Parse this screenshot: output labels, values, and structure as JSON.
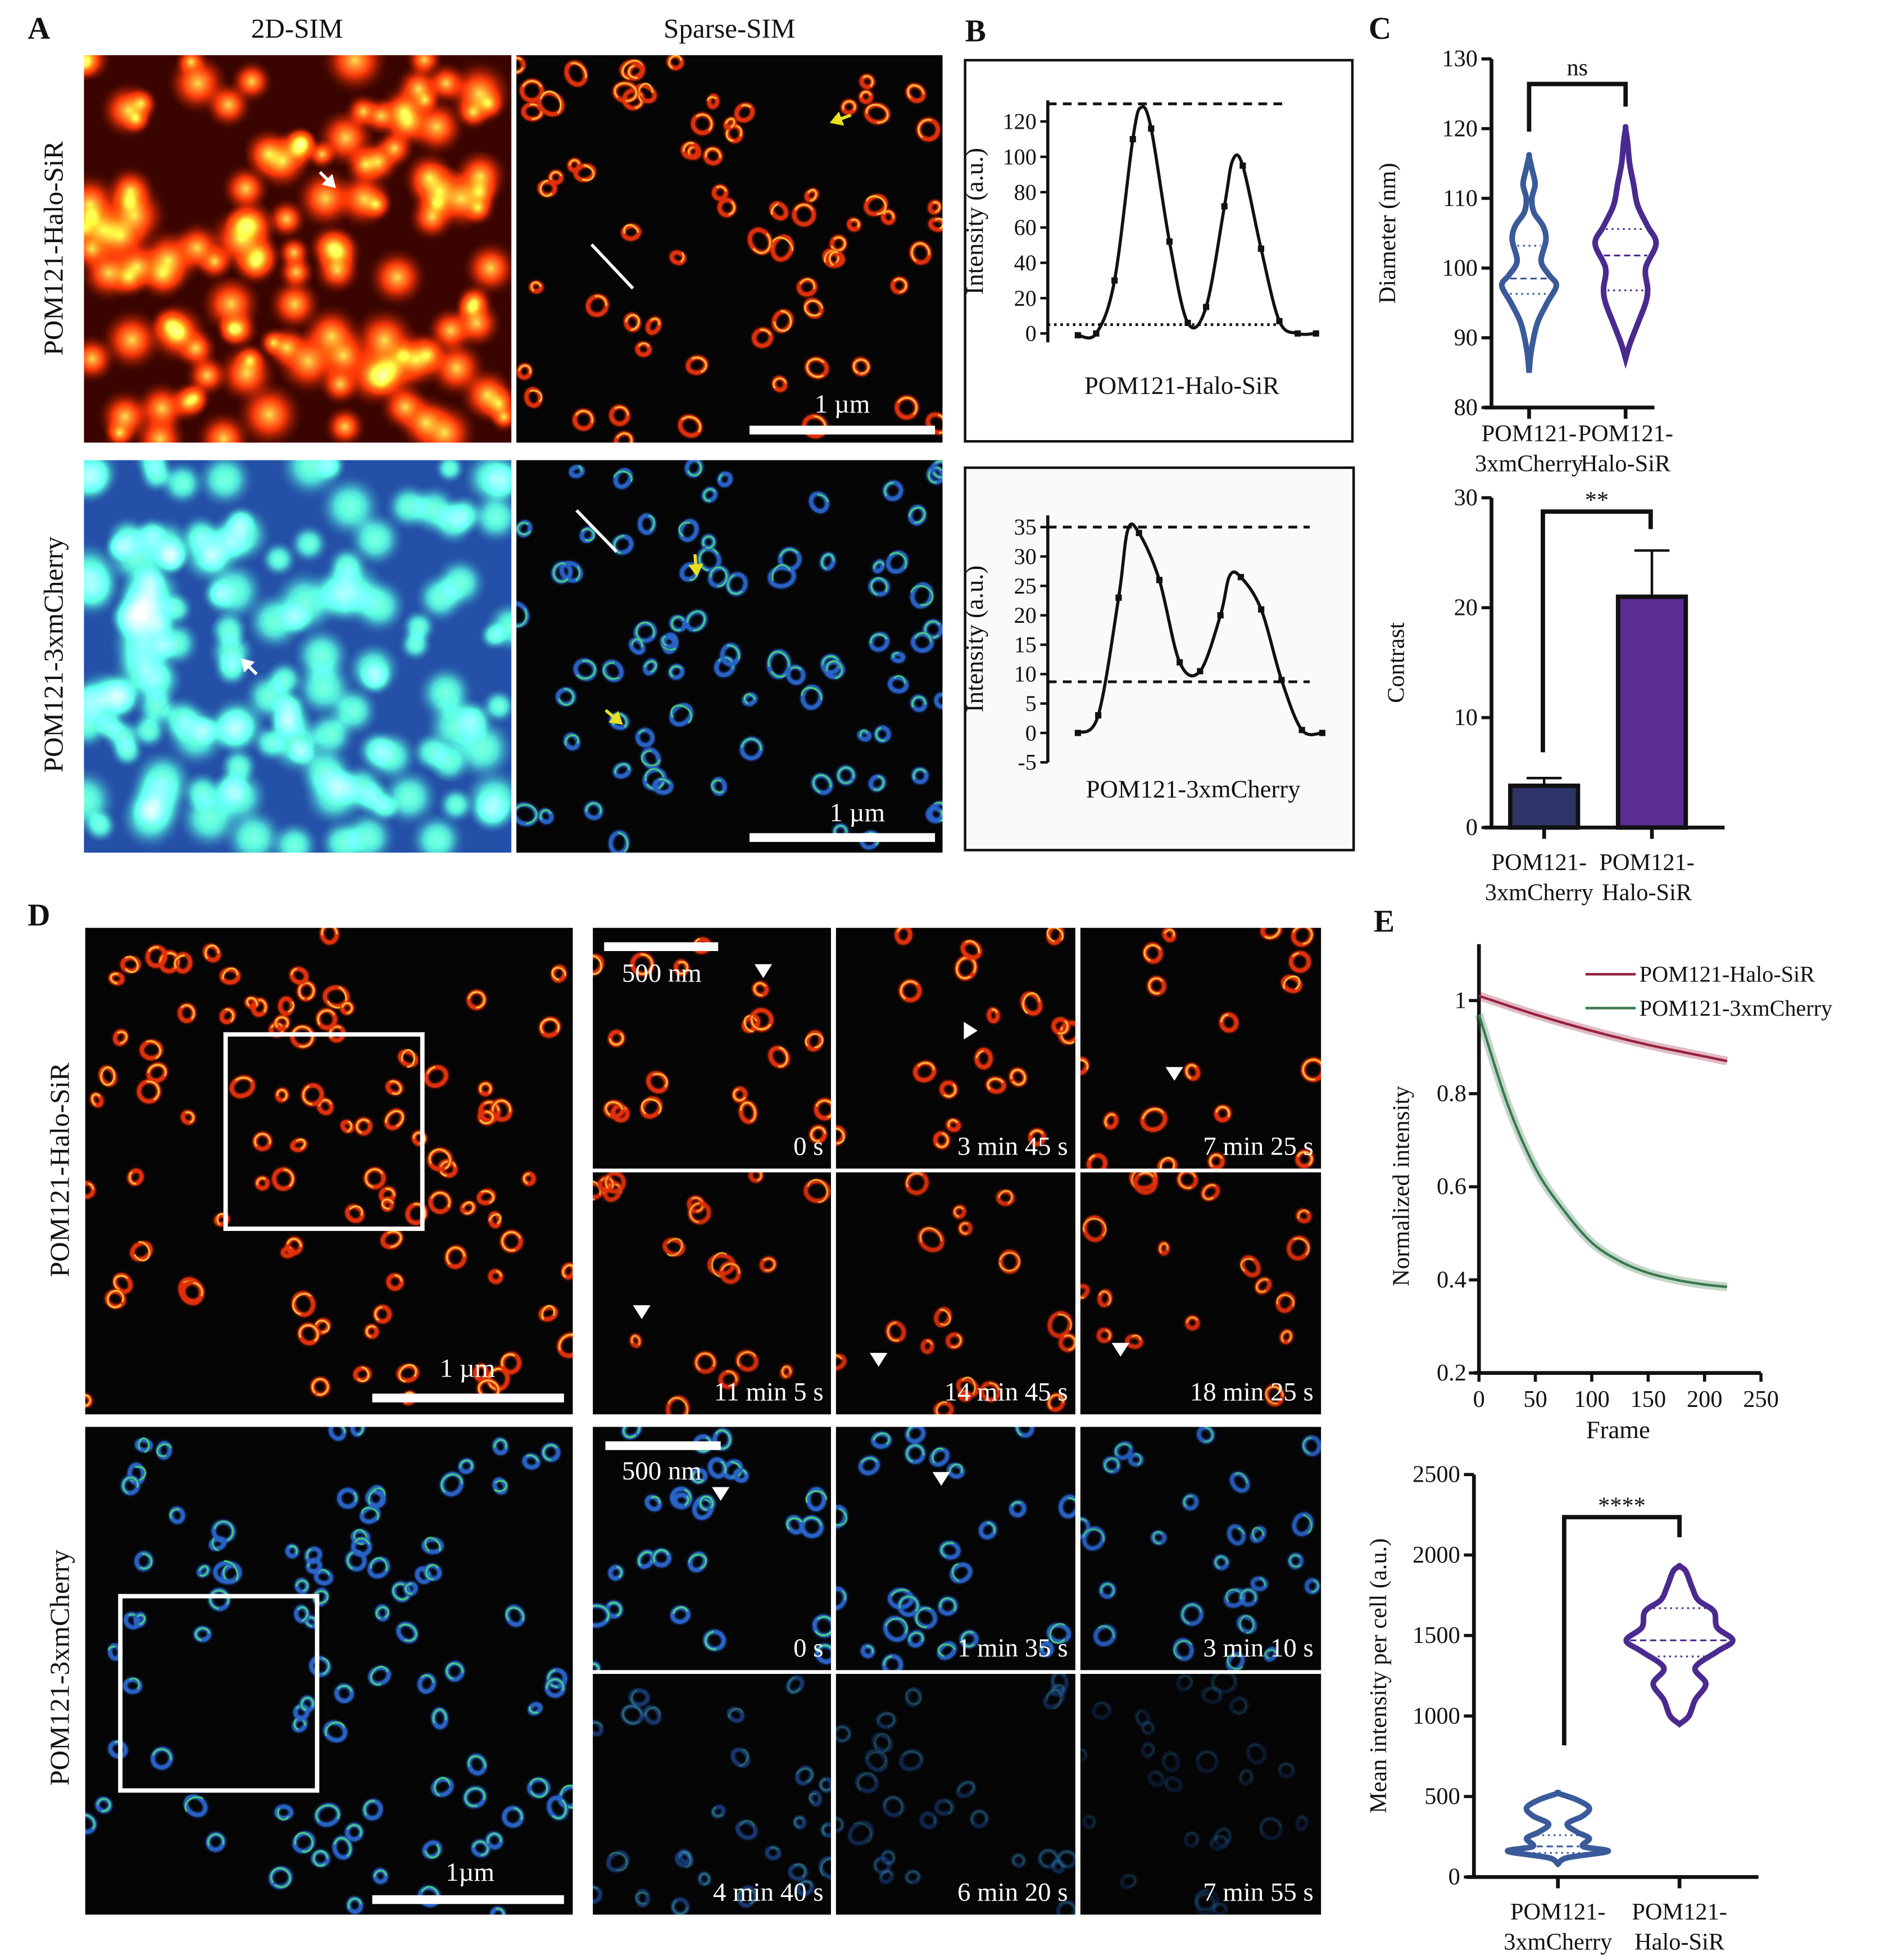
{
  "panel_letters": {
    "A": "A",
    "B": "B",
    "C": "C",
    "D": "D",
    "E": "E"
  },
  "panel_a": {
    "column_headers": [
      "2D-SIM",
      "Sparse-SIM"
    ],
    "row_labels": [
      "POM121-Halo-SiR",
      "POM121-3xmCherry"
    ],
    "scale_bar_labels": [
      "1 µm",
      "1 µm"
    ]
  },
  "panel_d": {
    "row_labels": [
      "POM121-Halo-SiR",
      "POM121-3xmCherry"
    ],
    "overview_scale_bar_labels": [
      "1 µm",
      "1µm"
    ],
    "tile_scale_bar_labels": [
      "500 nm",
      "500 nm"
    ],
    "halo_time_labels": [
      "0 s",
      "3 min 45 s",
      "7 min 25 s",
      "11 min 5 s",
      "14 min 45 s",
      "18 min 25 s"
    ],
    "cherry_time_labels": [
      "0 s",
      "1 min 35 s",
      "3 min 10 s",
      "4 min 40 s",
      "6 min 20 s",
      "7 min 55 s"
    ]
  },
  "colors": {
    "halo_violin": "#4b2a8f",
    "cherry_violin": "#3a5a9a",
    "cherry_bar": "#2e3468",
    "halo_bar": "#5a2d91",
    "halo_line": "#9a2040",
    "cherry_line": "#3a7a50",
    "arrow_yellow": "#e8e020",
    "arrow_white": "#ffffff"
  },
  "chart_data": [
    {
      "id": "B-top",
      "type": "line",
      "xlabel": "POM121-Halo-SiR",
      "ylabel": "Intensity (a.u.)",
      "yticks": [
        0,
        20,
        40,
        60,
        80,
        100,
        120
      ],
      "ylim": [
        -5,
        132
      ],
      "points_y": [
        -1,
        0,
        30,
        110,
        116,
        52,
        6,
        15,
        72,
        95,
        48,
        7,
        0,
        0
      ],
      "fit_peaks": [
        {
          "after_index": 3,
          "y": 128
        },
        {
          "after_index": 8,
          "y": 98
        }
      ],
      "reference_lines": [
        {
          "y": 130,
          "style": "dashed"
        },
        {
          "y": 5,
          "style": "dotted"
        }
      ]
    },
    {
      "id": "B-bottom",
      "type": "line",
      "xlabel": "POM121-3xmCherry",
      "ylabel": "Intensity (a.u.)",
      "yticks": [
        -5,
        0,
        5,
        10,
        15,
        20,
        25,
        30,
        35
      ],
      "ylim": [
        -5,
        37
      ],
      "points_y": [
        0,
        3,
        23,
        34,
        26,
        12,
        10.5,
        20,
        26.5,
        21,
        9,
        0.5,
        0
      ],
      "fit_peaks": [
        {
          "after_index": 2,
          "y": 34.5
        },
        {
          "after_index": 7,
          "y": 26.7
        }
      ],
      "reference_lines": [
        {
          "y": 35,
          "style": "dashed"
        },
        {
          "y": 8.7,
          "style": "dashed"
        }
      ]
    },
    {
      "id": "C-violin",
      "type": "violin",
      "ylabel": "Diameter (nm)",
      "yticks": [
        80,
        90,
        100,
        110,
        120,
        130
      ],
      "ylim": [
        80,
        130
      ],
      "categories": [
        [
          "POM121-",
          "3xmCherry"
        ],
        [
          "POM121-",
          "Halo-SiR"
        ]
      ],
      "series": [
        {
          "median": 98.5,
          "q1": 96.3,
          "q3": 103.2,
          "min": 85,
          "max": 116,
          "profile": [
            [
              85,
              0
            ],
            [
              88,
              0.05
            ],
            [
              92,
              0.2
            ],
            [
              95,
              0.45
            ],
            [
              97.5,
              0.68
            ],
            [
              99,
              0.5
            ],
            [
              101,
              0.3
            ],
            [
              104,
              0.42
            ],
            [
              106,
              0.35
            ],
            [
              108,
              0.12
            ],
            [
              110,
              0.07
            ],
            [
              112,
              0.15
            ],
            [
              114,
              0.08
            ],
            [
              116,
              0
            ]
          ]
        },
        {
          "median": 101.8,
          "q1": 96.8,
          "q3": 105.6,
          "min": 87,
          "max": 120,
          "profile": [
            [
              87,
              0
            ],
            [
              89,
              0.1
            ],
            [
              92,
              0.3
            ],
            [
              95,
              0.5
            ],
            [
              97,
              0.55
            ],
            [
              100,
              0.5
            ],
            [
              103.5,
              0.76
            ],
            [
              106,
              0.55
            ],
            [
              109,
              0.3
            ],
            [
              112,
              0.2
            ],
            [
              115,
              0.1
            ],
            [
              118,
              0.05
            ],
            [
              120,
              0
            ]
          ]
        }
      ],
      "significance": "ns"
    },
    {
      "id": "C-bar",
      "type": "bar",
      "ylabel": "Contrast",
      "yticks": [
        0,
        10,
        20,
        30
      ],
      "ylim": [
        0,
        30
      ],
      "categories": [
        [
          "POM121-",
          "3xmCherry"
        ],
        [
          "POM121-",
          "Halo-SiR"
        ]
      ],
      "values": [
        3.8,
        21.0
      ],
      "errors": [
        0.7,
        4.2
      ],
      "significance": "**"
    },
    {
      "id": "E-line",
      "type": "line",
      "xlabel": "Frame",
      "ylabel": "Normalized intensity",
      "xticks": [
        0,
        50,
        100,
        150,
        200,
        250
      ],
      "yticks": [
        0.2,
        0.4,
        0.6,
        0.8,
        1.0
      ],
      "xlim": [
        0,
        250
      ],
      "ylim": [
        0.2,
        1.05
      ],
      "legend": "top-right",
      "series": [
        {
          "name": "POM121-Halo-SiR",
          "x": [
            0,
            50,
            100,
            150,
            200,
            220
          ],
          "y": [
            1.01,
            0.97,
            0.935,
            0.905,
            0.88,
            0.87
          ]
        },
        {
          "name": "POM121-3xmCherry",
          "x": [
            0,
            25,
            50,
            75,
            100,
            125,
            150,
            175,
            200,
            220
          ],
          "y": [
            0.97,
            0.78,
            0.64,
            0.55,
            0.48,
            0.44,
            0.415,
            0.4,
            0.39,
            0.385
          ]
        }
      ]
    },
    {
      "id": "E-violin",
      "type": "violin",
      "ylabel": "Mean intensity per cell (a.u.)",
      "yticks": [
        0,
        500,
        1000,
        1500,
        2000,
        2500
      ],
      "ylim": [
        0,
        2500
      ],
      "categories": [
        [
          "POM121-",
          "3xmCherry"
        ],
        [
          "POM121-",
          "Halo-SiR"
        ]
      ],
      "series": [
        {
          "median": 190,
          "q1": 150,
          "q3": 260,
          "min": 80,
          "max": 520,
          "profile": [
            [
              80,
              0
            ],
            [
              120,
              0.15
            ],
            [
              160,
              0.8
            ],
            [
              190,
              0.4
            ],
            [
              240,
              0.5
            ],
            [
              280,
              0.3
            ],
            [
              330,
              0.15
            ],
            [
              380,
              0.4
            ],
            [
              430,
              0.5
            ],
            [
              480,
              0.3
            ],
            [
              520,
              0
            ]
          ]
        },
        {
          "median": 1470,
          "q1": 1370,
          "q3": 1670,
          "min": 950,
          "max": 1930,
          "profile": [
            [
              950,
              0
            ],
            [
              1000,
              0.15
            ],
            [
              1100,
              0.25
            ],
            [
              1200,
              0.42
            ],
            [
              1300,
              0.25
            ],
            [
              1400,
              0.6
            ],
            [
              1470,
              0.85
            ],
            [
              1550,
              0.6
            ],
            [
              1650,
              0.55
            ],
            [
              1720,
              0.3
            ],
            [
              1800,
              0.2
            ],
            [
              1900,
              0.1
            ],
            [
              1930,
              0
            ]
          ]
        }
      ],
      "significance": "****"
    }
  ]
}
